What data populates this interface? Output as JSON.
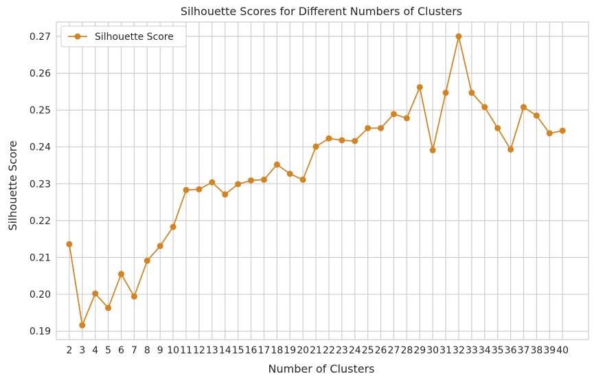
{
  "chart_data": {
    "type": "line",
    "title": "Silhouette Scores for Different Numbers of Clusters",
    "xlabel": "Number of Clusters",
    "ylabel": "Silhouette Score",
    "x": [
      2,
      3,
      4,
      5,
      6,
      7,
      8,
      9,
      10,
      11,
      12,
      13,
      14,
      15,
      16,
      17,
      18,
      19,
      20,
      21,
      22,
      23,
      24,
      25,
      26,
      27,
      28,
      29,
      30,
      31,
      32,
      33,
      34,
      35,
      36,
      37,
      38,
      39,
      40
    ],
    "series": [
      {
        "name": "Silhouette Score",
        "color": "#d4831f",
        "values": [
          0.2136,
          0.1916,
          0.2002,
          0.1963,
          0.2055,
          0.1994,
          0.2091,
          0.2131,
          0.2183,
          0.2283,
          0.2285,
          0.2304,
          0.2271,
          0.2299,
          0.2309,
          0.2311,
          0.2352,
          0.2327,
          0.2311,
          0.2401,
          0.2423,
          0.2418,
          0.2416,
          0.2451,
          0.2451,
          0.2489,
          0.2478,
          0.2562,
          0.2391,
          0.2547,
          0.27,
          0.2547,
          0.2508,
          0.2451,
          0.2393,
          0.2508,
          0.2485,
          0.2437,
          0.2444
        ]
      }
    ],
    "xticks": [
      "2",
      "3",
      "4",
      "5",
      "6",
      "7",
      "8",
      "9",
      "10",
      "11",
      "12",
      "13",
      "14",
      "15",
      "16",
      "17",
      "18",
      "19",
      "20",
      "21",
      "22",
      "23",
      "24",
      "25",
      "26",
      "27",
      "28",
      "29",
      "30",
      "31",
      "32",
      "33",
      "34",
      "35",
      "36",
      "37",
      "38",
      "39",
      "40"
    ],
    "yticks": [
      0.19,
      0.2,
      0.21,
      0.22,
      0.23,
      0.24,
      0.25,
      0.26,
      0.27
    ],
    "ytick_labels": [
      "0.19",
      "0.20",
      "0.21",
      "0.22",
      "0.23",
      "0.24",
      "0.25",
      "0.26",
      "0.27"
    ],
    "ylim": [
      0.1877,
      0.2739
    ],
    "xlim": [
      1.0,
      42.0
    ],
    "grid": true,
    "legend_position": "top-left"
  }
}
